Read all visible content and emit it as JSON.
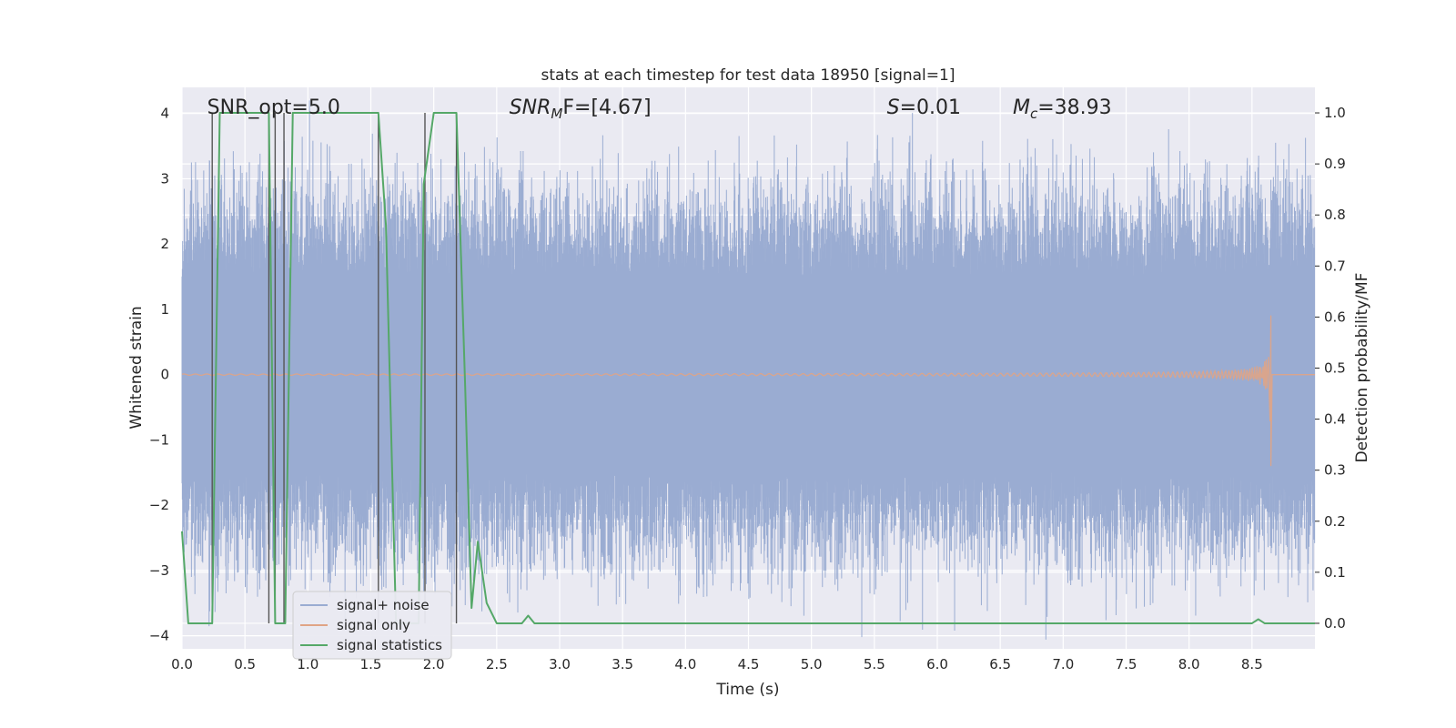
{
  "chart_data": {
    "type": "line",
    "title": "stats at each timestep for test data 18950 [signal=1]",
    "xlabel": "Time (s)",
    "ylabel": "Whitened strain",
    "ylabel_right": "Detection probability/MF",
    "xlim": [
      0.0,
      9.0
    ],
    "ylim": [
      -4.2,
      4.4
    ],
    "ylim_right": [
      -0.05,
      1.05
    ],
    "x_ticks": [
      "0.0",
      "0.5",
      "1.0",
      "1.5",
      "2.0",
      "2.5",
      "3.0",
      "3.5",
      "4.0",
      "4.5",
      "5.0",
      "5.5",
      "6.0",
      "6.5",
      "7.0",
      "7.5",
      "8.0",
      "8.5"
    ],
    "y_ticks": [
      "−4",
      "−3",
      "−2",
      "−1",
      "0",
      "1",
      "2",
      "3",
      "4"
    ],
    "y_ticks_right": [
      "0.0",
      "0.1",
      "0.2",
      "0.3",
      "0.4",
      "0.5",
      "0.6",
      "0.7",
      "0.8",
      "0.9",
      "1.0"
    ],
    "grid": true,
    "legend": {
      "position": "lower-left",
      "entries": [
        "signal+ noise",
        "signal only",
        "signal statistics"
      ]
    },
    "annotations": [
      {
        "prefix": "SNR_opt=5.0",
        "sub": "",
        "suffix": "",
        "x": 0.2
      },
      {
        "prefix": "SNR",
        "sub": "M",
        "suffix": "F=[4.67]",
        "x": 2.6
      },
      {
        "prefix": "S",
        "sub": "",
        "suffix": "=0.01",
        "x": 5.6
      },
      {
        "prefix": "M",
        "sub": "c",
        "suffix": "=38.93",
        "x": 6.6
      }
    ],
    "colors": {
      "signal_noise": "#4c72b0",
      "signal_only": "#dd8452",
      "statistics": "#55a868",
      "vlines": "#555555",
      "axes_bg": "#eaeaf2"
    },
    "series": [
      {
        "name": "signal+ noise",
        "description_values": "dense whitened strain, approx. ±2.5 typical, peaks to ±3.8",
        "envelope_y": [
          -2.5,
          2.5
        ]
      },
      {
        "name": "signal only",
        "chirp_end_x": 8.65,
        "chirp_peak_y": 1.3
      },
      {
        "name": "signal statistics",
        "x": [
          0.0,
          0.05,
          0.2,
          0.24,
          0.3,
          0.69,
          0.74,
          0.82,
          0.88,
          1.56,
          1.62,
          1.7,
          1.88,
          1.92,
          2.0,
          2.18,
          2.25,
          2.3,
          2.35,
          2.42,
          2.5,
          2.7,
          2.75,
          2.8,
          3.2,
          8.5,
          8.55,
          8.6,
          9.0
        ],
        "values": [
          0.18,
          0.0,
          0.0,
          0.0,
          1.0,
          1.0,
          0.0,
          0.0,
          1.0,
          1.0,
          0.78,
          0.0,
          0.0,
          0.86,
          1.0,
          1.0,
          0.46,
          0.03,
          0.16,
          0.04,
          0.0,
          0.0,
          0.015,
          0.0,
          0.0,
          0.0,
          0.008,
          0.0,
          0.0
        ]
      }
    ],
    "vlines_x": [
      0.24,
      0.69,
      0.74,
      0.81,
      1.56,
      1.93,
      2.18
    ]
  }
}
